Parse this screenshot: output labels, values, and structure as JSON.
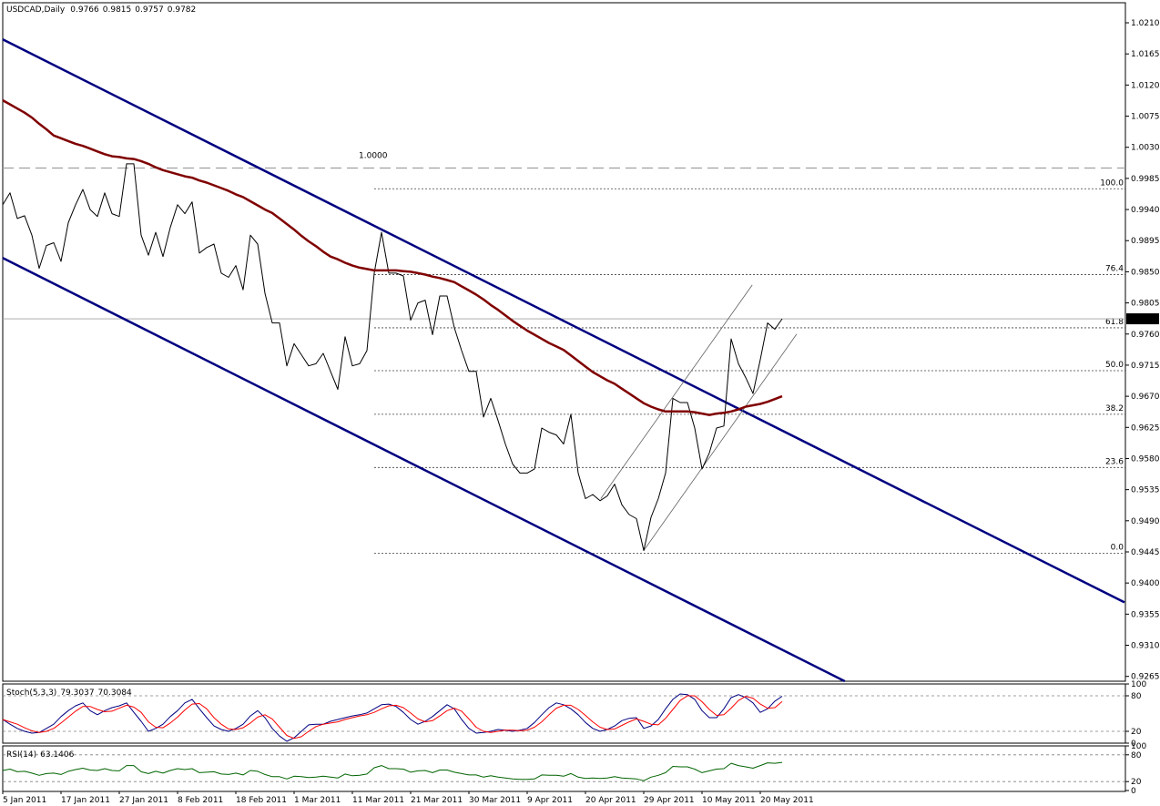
{
  "chart_data": [
    {
      "type": "line",
      "title": "USDCAD,Daily",
      "ohlc": [
        0.9766,
        0.9815,
        0.9757,
        0.9782
      ],
      "categories": [
        "5 Jan 2011",
        null,
        null,
        null,
        null,
        null,
        null,
        null,
        "17 Jan 2011",
        null,
        null,
        null,
        null,
        null,
        null,
        null,
        "27 Jan 2011",
        null,
        null,
        null,
        null,
        null,
        null,
        null,
        "8 Feb 2011",
        null,
        null,
        null,
        null,
        null,
        null,
        null,
        "18 Feb 2011",
        null,
        null,
        null,
        null,
        null,
        null,
        null,
        "1 Mar 2011",
        null,
        null,
        null,
        null,
        null,
        null,
        null,
        "11 Mar 2011",
        null,
        null,
        null,
        null,
        null,
        null,
        null,
        "21 Mar 2011",
        null,
        null,
        null,
        null,
        null,
        null,
        null,
        "30 Mar 2011",
        null,
        null,
        null,
        null,
        null,
        null,
        null,
        "9 Apr 2011",
        null,
        null,
        null,
        null,
        null,
        null,
        null,
        "20 Apr 2011",
        null,
        null,
        null,
        null,
        null,
        null,
        null,
        "29 Apr 2011",
        null,
        null,
        null,
        null,
        null,
        null,
        null,
        "10 May 2011",
        null,
        null,
        null,
        null,
        null,
        null,
        null,
        "20 May 2011",
        null,
        null,
        null
      ],
      "series": [
        {
          "color": "#000000",
          "width": 1,
          "values": [
            0.9947,
            0.9964,
            0.9927,
            0.9931,
            0.9903,
            0.9855,
            0.9888,
            0.9892,
            0.9865,
            0.9921,
            0.9947,
            0.9969,
            0.994,
            0.993,
            0.9964,
            0.9934,
            0.993,
            1.0006,
            1.0006,
            0.9903,
            0.9874,
            0.9907,
            0.9872,
            0.9914,
            0.9947,
            0.9934,
            0.9951,
            0.9877,
            0.9885,
            0.989,
            0.9848,
            0.9842,
            0.9859,
            0.9824,
            0.9903,
            0.989,
            0.9819,
            0.9776,
            0.9776,
            0.9714,
            0.9746,
            0.973,
            0.9714,
            0.9717,
            0.9732,
            0.9706,
            0.968,
            0.9756,
            0.9714,
            0.9717,
            0.9736,
            0.9848,
            0.9907,
            0.9848,
            0.9848,
            0.9844,
            0.978,
            0.9805,
            0.9809,
            0.9759,
            0.9815,
            0.9815,
            0.9769,
            0.9736,
            0.9706,
            0.9706,
            0.964,
            0.9667,
            0.9635,
            0.9601,
            0.9572,
            0.9559,
            0.9559,
            0.9565,
            0.9624,
            0.9618,
            0.9614,
            0.9601,
            0.9644,
            0.9559,
            0.9522,
            0.9528,
            0.9519,
            0.9526,
            0.9543,
            0.9513,
            0.9499,
            0.9493,
            0.9447,
            0.9495,
            0.9522,
            0.9559,
            0.9667,
            0.9661,
            0.9661,
            0.9624,
            0.9565,
            0.9588,
            0.9624,
            0.9627,
            0.9753,
            0.9717,
            0.9697,
            0.9674,
            0.9723,
            0.9776,
            0.9767,
            0.9782
          ]
        },
        {
          "color": "#800000",
          "width": 2.5,
          "values": [
            1.0098,
            1.0092,
            1.0086,
            1.008,
            1.0073,
            1.0064,
            1.0056,
            1.0047,
            1.0043,
            1.0039,
            1.0035,
            1.0032,
            1.0028,
            1.0024,
            1.002,
            1.0017,
            1.0016,
            1.0014,
            1.0013,
            1.001,
            1.0006,
            1.0001,
            0.9997,
            0.9994,
            0.9991,
            0.9988,
            0.9986,
            0.9982,
            0.9979,
            0.9975,
            0.9971,
            0.9967,
            0.9962,
            0.9958,
            0.9952,
            0.9946,
            0.994,
            0.9935,
            0.9927,
            0.9919,
            0.9911,
            0.9902,
            0.9894,
            0.9887,
            0.9879,
            0.9872,
            0.9868,
            0.9863,
            0.9859,
            0.9856,
            0.9854,
            0.9852,
            0.9852,
            0.9852,
            0.9852,
            0.9851,
            0.985,
            0.9848,
            0.9846,
            0.9843,
            0.9841,
            0.9838,
            0.9835,
            0.9829,
            0.9823,
            0.9817,
            0.981,
            0.9802,
            0.9795,
            0.9787,
            0.9779,
            0.9772,
            0.9765,
            0.9759,
            0.9753,
            0.9747,
            0.9742,
            0.9737,
            0.9729,
            0.9721,
            0.9713,
            0.9705,
            0.9699,
            0.9693,
            0.9688,
            0.9681,
            0.9674,
            0.9667,
            0.966,
            0.9655,
            0.9651,
            0.9648,
            0.9648,
            0.9648,
            0.9648,
            0.9647,
            0.9645,
            0.9643,
            0.9645,
            0.9646,
            0.9648,
            0.9651,
            0.9655,
            0.9657,
            0.9659,
            0.9662,
            0.9666,
            0.967
          ]
        }
      ],
      "ylim": [
        0.9258,
        1.0239
      ],
      "yticks": [
        {
          "value": 1.021,
          "label": "1.0210"
        },
        {
          "value": 1.0165,
          "label": "1.0165"
        },
        {
          "value": 1.012,
          "label": "1.0120"
        },
        {
          "value": 1.0075,
          "label": "1.0075"
        },
        {
          "value": 1.003,
          "label": "1.0030"
        },
        {
          "value": 0.9985,
          "label": "0.9985"
        },
        {
          "value": 0.994,
          "label": "0.9940"
        },
        {
          "value": 0.9895,
          "label": "0.9895"
        },
        {
          "value": 0.985,
          "label": "0.9850"
        },
        {
          "value": 0.9805,
          "label": "0.9805"
        },
        {
          "value": 0.976,
          "label": "0.9760"
        },
        {
          "value": 0.9715,
          "label": "0.9715"
        },
        {
          "value": 0.967,
          "label": "0.9670"
        },
        {
          "value": 0.9625,
          "label": "0.9625"
        },
        {
          "value": 0.958,
          "label": "0.9580"
        },
        {
          "value": 0.9535,
          "label": "0.9535"
        },
        {
          "value": 0.949,
          "label": "0.9490"
        },
        {
          "value": 0.9445,
          "label": "0.9445"
        },
        {
          "value": 0.94,
          "label": "0.9400"
        },
        {
          "value": 0.9355,
          "label": "0.9355"
        },
        {
          "value": 0.931,
          "label": "0.9310"
        },
        {
          "value": 0.9265,
          "label": "0.9265"
        }
      ],
      "last_price": 0.9782,
      "reference_line": {
        "value": 1,
        "label": "1.0000"
      },
      "fibonacci": [
        {
          "ratio": {
            "value": 100,
            "label": "100.0"
          },
          "price": 0.997
        },
        {
          "ratio": 76.4,
          "price": 0.9846
        },
        {
          "ratio": 61.8,
          "price": 0.9769
        },
        {
          "ratio": {
            "value": 50,
            "label": "50.0"
          },
          "price": 0.9707
        },
        {
          "ratio": 38.2,
          "price": 0.9644
        },
        {
          "ratio": 23.6,
          "price": 0.9567
        },
        {
          "ratio": {
            "value": 0,
            "label": "0.0"
          },
          "price": 0.9443
        }
      ],
      "channel_lines": [
        {
          "color": "#000080",
          "width": 2.5,
          "start": [
            0,
            1.0186
          ],
          "end": [
            154,
            0.9372
          ]
        },
        {
          "color": "#000080",
          "width": 2.5,
          "start": [
            0,
            0.987
          ],
          "end": [
            115.6,
            0.9258
          ]
        },
        {
          "color": "#606060",
          "width": 0.8,
          "start": [
            88,
            0.9447
          ],
          "end": [
            109,
            0.976
          ]
        },
        {
          "color": "#606060",
          "width": 0.8,
          "start": [
            82.1,
            0.9522
          ],
          "end": [
            102.9,
            0.9831
          ]
        }
      ]
    },
    {
      "type": "line",
      "title": "Stoch(5,3,3)",
      "readings": [
        79.3037,
        70.3084
      ],
      "series": [
        {
          "color": "#000080",
          "width": 1,
          "values": [
            40,
            32,
            25,
            20,
            17,
            18,
            25,
            32,
            45,
            55,
            63,
            68,
            55,
            48,
            55,
            60,
            63,
            68,
            52,
            37,
            20,
            25,
            32,
            45,
            55,
            68,
            74,
            58,
            43,
            29,
            23,
            20,
            25,
            32,
            46,
            55,
            43,
            25,
            12,
            3,
            9,
            20,
            31,
            32,
            32,
            37,
            40,
            43,
            46,
            48,
            51,
            58,
            65,
            66,
            62,
            52,
            40,
            32,
            37,
            45,
            55,
            65,
            58,
            40,
            25,
            17,
            18,
            20,
            23,
            22,
            20,
            22,
            25,
            35,
            48,
            60,
            68,
            65,
            58,
            48,
            35,
            25,
            20,
            23,
            29,
            38,
            42,
            43,
            25,
            29,
            40,
            58,
            74,
            83,
            82,
            74,
            55,
            43,
            43,
            58,
            77,
            82,
            77,
            68,
            52,
            58,
            71,
            79.3037
          ]
        },
        {
          "color": "#ff0000",
          "width": 1,
          "values": [
            40,
            36,
            32,
            26,
            21,
            18,
            20,
            25,
            34,
            44,
            54,
            62,
            62,
            57,
            53,
            54,
            59,
            64,
            61,
            52,
            36,
            27,
            26,
            34,
            44,
            56,
            66,
            67,
            58,
            43,
            32,
            24,
            23,
            26,
            34,
            44,
            48,
            41,
            27,
            13,
            8,
            11,
            20,
            28,
            32,
            34,
            36,
            40,
            43,
            46,
            48,
            52,
            58,
            63,
            64,
            60,
            51,
            41,
            36,
            38,
            46,
            55,
            59,
            54,
            41,
            27,
            20,
            18,
            20,
            22,
            22,
            21,
            22,
            27,
            36,
            48,
            59,
            64,
            64,
            57,
            47,
            36,
            27,
            23,
            24,
            30,
            36,
            41,
            37,
            32,
            31,
            42,
            57,
            72,
            80,
            80,
            70,
            57,
            47,
            48,
            59,
            72,
            79,
            76,
            66,
            59,
            60,
            70.3084
          ]
        }
      ],
      "ylim": [
        0,
        100
      ],
      "yticks": [
        100,
        80,
        20,
        0
      ],
      "levels": [
        80,
        20
      ]
    },
    {
      "type": "line",
      "title": "RSI(14)",
      "readings": [
        63.1406
      ],
      "series": [
        {
          "color": "#006400",
          "width": 1,
          "values": [
            45,
            48,
            42,
            43,
            39,
            34,
            38,
            39,
            36,
            43,
            47,
            50,
            46,
            45,
            49,
            45,
            44,
            56,
            56,
            42,
            38,
            43,
            39,
            45,
            49,
            47,
            49,
            40,
            41,
            42,
            37,
            36,
            39,
            35,
            45,
            43,
            36,
            31,
            31,
            26,
            32,
            31,
            29,
            30,
            32,
            30,
            28,
            37,
            33,
            34,
            37,
            51,
            56,
            49,
            49,
            48,
            41,
            44,
            45,
            40,
            46,
            46,
            41,
            38,
            35,
            35,
            30,
            33,
            30,
            28,
            26,
            25,
            25,
            26,
            35,
            34,
            34,
            32,
            38,
            30,
            27,
            28,
            27,
            28,
            31,
            28,
            27,
            26,
            22,
            30,
            34,
            40,
            54,
            53,
            53,
            48,
            40,
            44,
            48,
            49,
            61,
            56,
            53,
            50,
            56,
            62,
            61,
            63.1406
          ]
        }
      ],
      "ylim": [
        0,
        100
      ],
      "yticks": [
        100,
        80,
        20,
        0
      ],
      "levels": [
        80,
        20
      ]
    }
  ]
}
